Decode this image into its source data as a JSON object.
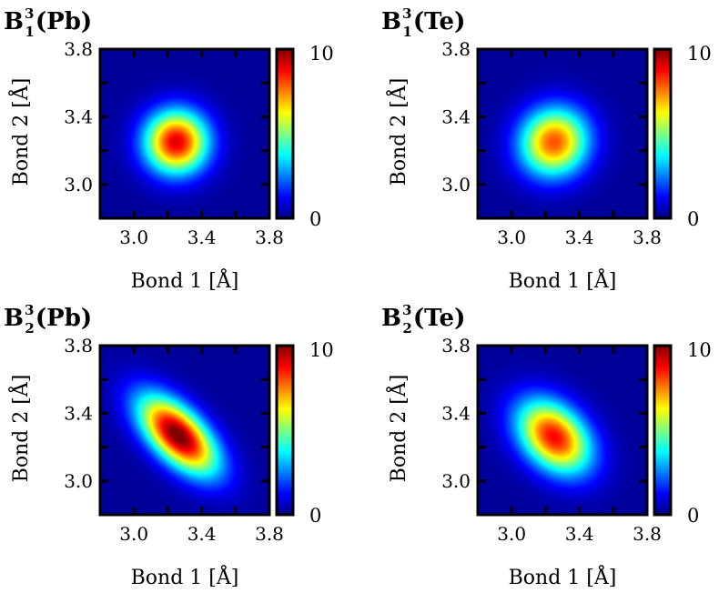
{
  "chart_data": [
    {
      "type": "heatmap",
      "title": {
        "base": "B",
        "sup": "3",
        "sub": "1",
        "species": "(Pb)"
      },
      "xlabel": "Bond 1 [Å]",
      "ylabel": "Bond 2 [Å]",
      "xlim": [
        2.8,
        3.8
      ],
      "ylim": [
        2.8,
        3.8
      ],
      "xticks": [
        "3.0",
        "3.4",
        "3.8"
      ],
      "yticks": [
        "3.0",
        "3.4",
        "3.8"
      ],
      "colorbar": {
        "range": [
          0,
          10
        ],
        "ticks": [
          "0",
          "10"
        ],
        "colormap": "jet"
      },
      "distribution": {
        "center": [
          3.25,
          3.25
        ],
        "sigma": [
          0.13,
          0.13
        ],
        "correlation": 0.0,
        "peak": 8.8
      }
    },
    {
      "type": "heatmap",
      "title": {
        "base": "B",
        "sup": "3",
        "sub": "1",
        "species": "(Te)"
      },
      "xlabel": "Bond 1 [Å]",
      "ylabel": "Bond 2 [Å]",
      "xlim": [
        2.8,
        3.8
      ],
      "ylim": [
        2.8,
        3.8
      ],
      "xticks": [
        "3.0",
        "3.4",
        "3.8"
      ],
      "yticks": [
        "3.0",
        "3.4",
        "3.8"
      ],
      "colorbar": {
        "range": [
          0,
          10
        ],
        "ticks": [
          "0",
          "10"
        ],
        "colormap": "jet"
      },
      "distribution": {
        "center": [
          3.25,
          3.25
        ],
        "sigma": [
          0.14,
          0.14
        ],
        "correlation": 0.05,
        "peak": 7.7
      }
    },
    {
      "type": "heatmap",
      "title": {
        "base": "B",
        "sup": "3",
        "sub": "2",
        "species": "(Pb)"
      },
      "xlabel": "Bond 1 [Å]",
      "ylabel": "Bond 2 [Å]",
      "xlim": [
        2.8,
        3.8
      ],
      "ylim": [
        2.8,
        3.8
      ],
      "xticks": [
        "3.0",
        "3.4",
        "3.8"
      ],
      "yticks": [
        "3.0",
        "3.4",
        "3.8"
      ],
      "colorbar": {
        "range": [
          0,
          10
        ],
        "ticks": [
          "0",
          "10"
        ],
        "colormap": "jet"
      },
      "distribution": {
        "center": [
          3.26,
          3.27
        ],
        "sigma": [
          0.16,
          0.16
        ],
        "correlation": -0.6,
        "peak": 10.0
      }
    },
    {
      "type": "heatmap",
      "title": {
        "base": "B",
        "sup": "3",
        "sub": "2",
        "species": "(Te)"
      },
      "xlabel": "Bond 1 [Å]",
      "ylabel": "Bond 2 [Å]",
      "xlim": [
        2.8,
        3.8
      ],
      "ylim": [
        2.8,
        3.8
      ],
      "xticks": [
        "3.0",
        "3.4",
        "3.8"
      ],
      "yticks": [
        "3.0",
        "3.4",
        "3.8"
      ],
      "colorbar": {
        "range": [
          0,
          10
        ],
        "ticks": [
          "0",
          "10"
        ],
        "colormap": "jet"
      },
      "distribution": {
        "center": [
          3.25,
          3.26
        ],
        "sigma": [
          0.15,
          0.15
        ],
        "correlation": -0.35,
        "peak": 8.5
      }
    }
  ]
}
